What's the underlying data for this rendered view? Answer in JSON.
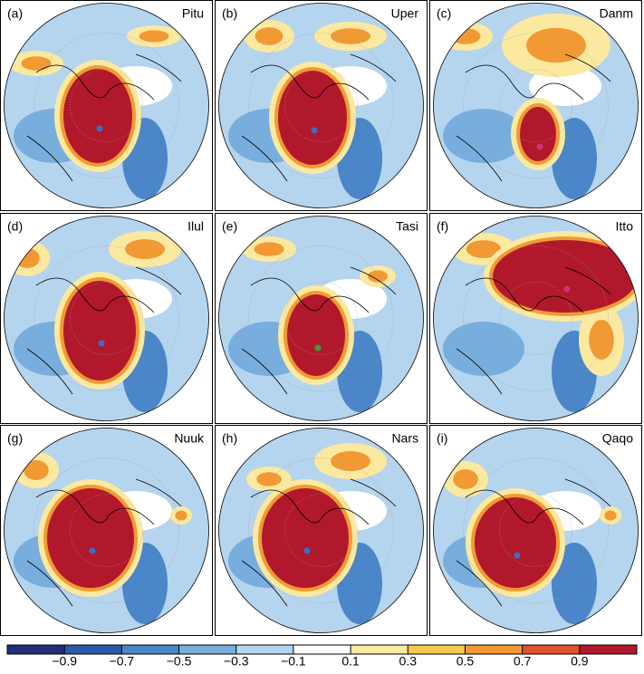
{
  "panels": [
    {
      "label": "(a)",
      "name": "Pitu"
    },
    {
      "label": "(b)",
      "name": "Uper"
    },
    {
      "label": "(c)",
      "name": "Danm"
    },
    {
      "label": "(d)",
      "name": "Ilul"
    },
    {
      "label": "(e)",
      "name": "Tasi"
    },
    {
      "label": "(f)",
      "name": "Itto"
    },
    {
      "label": "(g)",
      "name": "Nuuk"
    },
    {
      "label": "(h)",
      "name": "Nars"
    },
    {
      "label": "(i)",
      "name": "Qaqo"
    }
  ],
  "colorbar": {
    "lim": [
      -1.1,
      1.1
    ],
    "colors": [
      "#1f2f7a",
      "#2b5aa8",
      "#4a86c8",
      "#78aedd",
      "#b5d4ee",
      "#ffffff",
      "#fbe9a0",
      "#f7c94e",
      "#f19a33",
      "#e0522a",
      "#b2182b"
    ],
    "ticks": [
      {
        "value": -0.9,
        "label": "−0.9"
      },
      {
        "value": -0.7,
        "label": "−0.7"
      },
      {
        "value": -0.5,
        "label": "−0.5"
      },
      {
        "value": -0.3,
        "label": "−0.3"
      },
      {
        "value": -0.1,
        "label": "−0.1"
      },
      0.1,
      0.3,
      0.5,
      0.7,
      0.9
    ]
  }
}
